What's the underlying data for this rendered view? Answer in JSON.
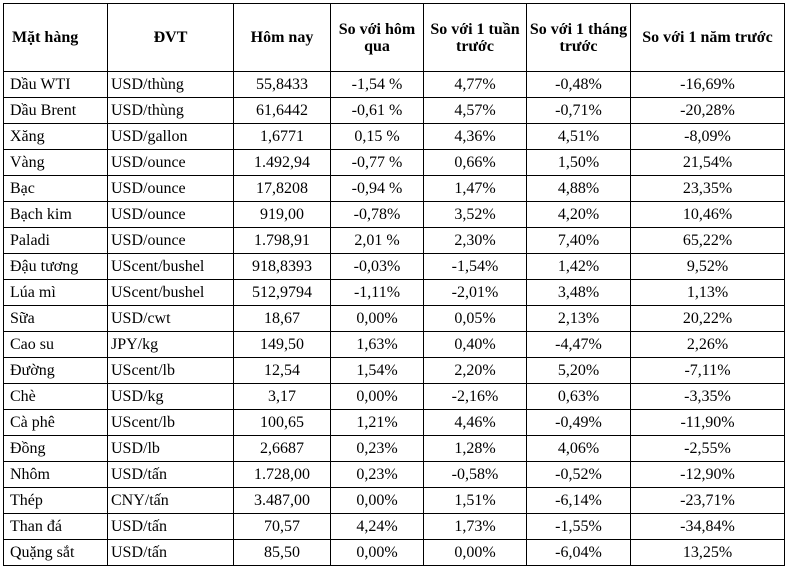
{
  "headers": {
    "item": "Mặt hàng",
    "unit": "ĐVT",
    "today": "Hôm nay",
    "vs_yesterday": "So với hôm qua",
    "vs_week": "So với 1 tuần trước",
    "vs_month": "So với 1 tháng trước",
    "vs_year": "So với 1 năm trước"
  },
  "rows": [
    [
      "Dầu WTI",
      "USD/thùng",
      "55,8433",
      "-1,54 %",
      "4,77%",
      "-0,48%",
      "-16,69%"
    ],
    [
      "Dầu Brent",
      "USD/thùng",
      "61,6442",
      "-0,61 %",
      "4,57%",
      "-0,71%",
      "-20,28%"
    ],
    [
      "Xăng",
      "USD/gallon",
      "1,6771",
      "0,15 %",
      "4,36%",
      "4,51%",
      "-8,09%"
    ],
    [
      "Vàng",
      "USD/ounce",
      "1.492,94",
      "-0,77 %",
      "0,66%",
      "1,50%",
      "21,54%"
    ],
    [
      "Bạc",
      "USD/ounce",
      "17,8208",
      "-0,94 %",
      "1,47%",
      "4,88%",
      "23,35%"
    ],
    [
      "Bạch kim",
      "USD/ounce",
      "919,00",
      "-0,78%",
      "3,52%",
      "4,20%",
      "10,46%"
    ],
    [
      "Paladi",
      "USD/ounce",
      "1.798,91",
      "2,01 %",
      "2,30%",
      "7,40%",
      "65,22%"
    ],
    [
      "Đậu tương",
      "UScent/bushel",
      "918,8393",
      "-0,03%",
      "-1,54%",
      "1,42%",
      "9,52%"
    ],
    [
      "Lúa mì",
      "UScent/bushel",
      "512,9794",
      "-1,11%",
      "-2,01%",
      "3,48%",
      "1,13%"
    ],
    [
      "Sữa",
      "USD/cwt",
      "18,67",
      "0,00%",
      "0,05%",
      "2,13%",
      "20,22%"
    ],
    [
      "Cao su",
      "JPY/kg",
      "149,50",
      "1,63%",
      "0,40%",
      "-4,47%",
      "2,26%"
    ],
    [
      "Đường",
      "UScent/lb",
      "12,54",
      "1,54%",
      "2,20%",
      "5,20%",
      "-7,11%"
    ],
    [
      "Chè",
      "USD/kg",
      "3,17",
      "0,00%",
      "-2,16%",
      "0,63%",
      "-3,35%"
    ],
    [
      "Cà phê",
      "UScent/lb",
      "100,65",
      "1,21%",
      "4,46%",
      "-0,49%",
      "-11,90%"
    ],
    [
      "Đồng",
      "USD/lb",
      "2,6687",
      "0,23%",
      "1,28%",
      "4,06%",
      "-2,55%"
    ],
    [
      "Nhôm",
      "USD/tấn",
      "1.728,00",
      "0,23%",
      "-0,58%",
      "-0,52%",
      "-12,90%"
    ],
    [
      "Thép",
      "CNY/tấn",
      "3.487,00",
      "0,00%",
      "1,51%",
      "-6,14%",
      "-23,71%"
    ],
    [
      "Than đá",
      "USD/tấn",
      "70,57",
      "4,24%",
      "1,73%",
      "-1,55%",
      "-34,84%"
    ],
    [
      "Quặng sắt",
      "USD/tấn",
      "85,50",
      "0,00%",
      "0,00%",
      "-6,04%",
      "13,25%"
    ]
  ]
}
